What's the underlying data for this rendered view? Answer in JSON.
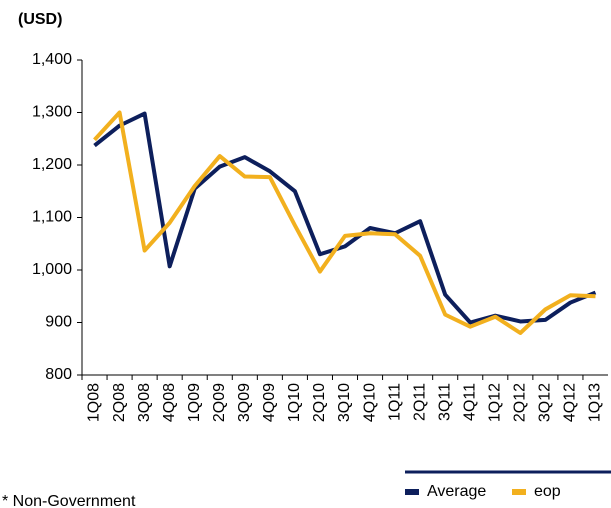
{
  "chart_data": {
    "type": "line",
    "unit_label": "(USD)",
    "footnote": "* Non-Government",
    "categories": [
      "1Q08",
      "2Q08",
      "3Q08",
      "4Q08",
      "1Q09",
      "2Q09",
      "3Q09",
      "4Q09",
      "1Q10",
      "2Q10",
      "3Q10",
      "4Q10",
      "1Q11",
      "2Q11",
      "3Q11",
      "4Q11",
      "1Q12",
      "2Q12",
      "3Q12",
      "4Q12",
      "1Q13"
    ],
    "series": [
      {
        "name": "Average",
        "color": "#0d1f5c",
        "values": [
          1237,
          1275,
          1298,
          1007,
          1155,
          1197,
          1215,
          1188,
          1150,
          1030,
          1045,
          1080,
          1070,
          1093,
          953,
          900,
          913,
          902,
          905,
          938,
          957
        ]
      },
      {
        "name": "eop",
        "color": "#f2b01e",
        "values": [
          1248,
          1300,
          1037,
          1090,
          1160,
          1217,
          1178,
          1177,
          1085,
          997,
          1065,
          1070,
          1068,
          1027,
          915,
          892,
          911,
          880,
          925,
          952,
          950
        ]
      }
    ],
    "ylim": [
      800,
      1400
    ],
    "yticks": [
      {
        "value": 800,
        "label": "800"
      },
      {
        "value": 900,
        "label": "900"
      },
      {
        "value": 1000,
        "label": "1,000"
      },
      {
        "value": 1100,
        "label": "1,100"
      },
      {
        "value": 1200,
        "label": "1,200"
      },
      {
        "value": 1300,
        "label": "1,300"
      },
      {
        "value": 1400,
        "label": "1,400"
      }
    ],
    "legend": "bottom-right",
    "grid": false
  }
}
